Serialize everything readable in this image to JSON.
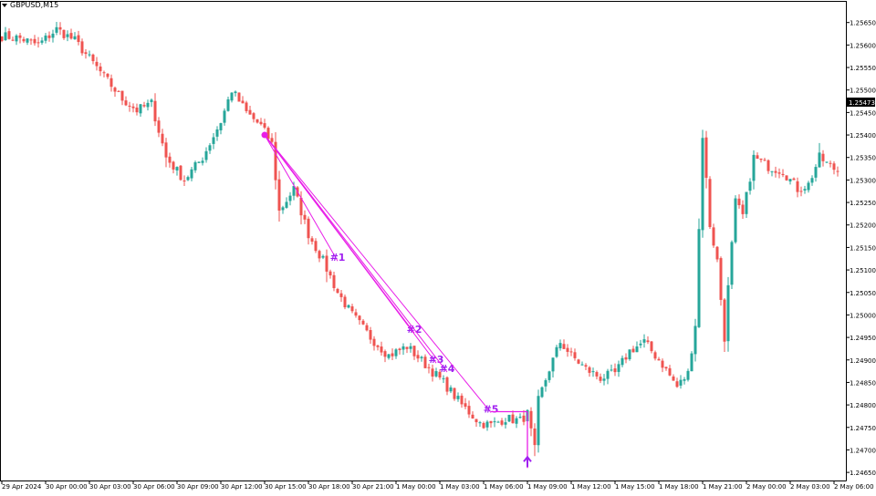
{
  "header": {
    "symbol": "GBPUSD,M15"
  },
  "colors": {
    "bull": "#26a69a",
    "bear": "#ef5350",
    "markup": "#e81ee8",
    "label": "#a020f0",
    "background": "#ffffff",
    "axis": "#000000",
    "price_tag_bg": "#000000",
    "price_tag_fg": "#ffffff"
  },
  "chart_data": {
    "type": "candlestick",
    "title": "",
    "xlabel": "",
    "ylabel": "",
    "ylim": [
      1.24632,
      1.25696
    ],
    "grid": false,
    "y_ticks": [
      "1.25650",
      "1.25600",
      "1.25550",
      "1.25500",
      "1.25450",
      "1.25400",
      "1.25350",
      "1.25300",
      "1.25250",
      "1.25200",
      "1.25150",
      "1.25100",
      "1.25050",
      "1.25000",
      "1.24950",
      "1.24900",
      "1.24850",
      "1.24800",
      "1.24750",
      "1.24700",
      "1.24650"
    ],
    "x_ticks": [
      "29 Apr 2024",
      "30 Apr 00:00",
      "30 Apr 03:00",
      "30 Apr 06:00",
      "30 Apr 09:00",
      "30 Apr 12:00",
      "30 Apr 15:00",
      "30 Apr 18:00",
      "30 Apr 21:00",
      "1 May 00:00",
      "1 May 03:00",
      "1 May 06:00",
      "1 May 09:00",
      "1 May 12:00",
      "1 May 15:00",
      "1 May 18:00",
      "1 May 21:00",
      "2 May 00:00",
      "2 May 03:00",
      "2 May 06:00"
    ],
    "current_price": "1.25473",
    "pivot": {
      "time": "30 Apr 15:00",
      "price": 1.254
    },
    "projections": [
      {
        "label": "#1",
        "time": "30 Apr 20:00",
        "price": 1.2512
      },
      {
        "label": "#2",
        "time": "1 May 01:15",
        "price": 1.2496
      },
      {
        "label": "#3",
        "time": "1 May 02:45",
        "price": 1.24893
      },
      {
        "label": "#4",
        "time": "1 May 03:30",
        "price": 1.24873
      },
      {
        "label": "#5",
        "time": "1 May 06:30",
        "price": 1.24783
      }
    ],
    "level_line_price": 1.24785,
    "arrow": {
      "time": "1 May 09:00",
      "price": 1.24672
    },
    "anchor_points": [
      [
        0,
        1.2562
      ],
      [
        5,
        1.25615
      ],
      [
        10,
        1.256
      ],
      [
        15,
        1.25635
      ],
      [
        20,
        1.2561
      ],
      [
        25,
        1.2556
      ],
      [
        28,
        1.2553
      ],
      [
        33,
        1.2548
      ],
      [
        37,
        1.25455
      ],
      [
        41,
        1.2547
      ],
      [
        45,
        1.2535
      ],
      [
        50,
        1.253
      ],
      [
        55,
        1.2535
      ],
      [
        60,
        1.2543
      ],
      [
        63,
        1.255
      ],
      [
        67,
        1.2545
      ],
      [
        71,
        1.2542
      ],
      [
        74,
        1.2538
      ],
      [
        76,
        1.2523
      ],
      [
        80,
        1.2528
      ],
      [
        84,
        1.2518
      ],
      [
        88,
        1.2512
      ],
      [
        92,
        1.2505
      ],
      [
        96,
        1.25
      ],
      [
        101,
        1.2495
      ],
      [
        106,
        1.2491
      ],
      [
        111,
        1.2493
      ],
      [
        116,
        1.2489
      ],
      [
        121,
        1.2485
      ],
      [
        126,
        1.248
      ],
      [
        131,
        1.2476
      ],
      [
        134,
        1.24755
      ],
      [
        138,
        1.2477
      ],
      [
        142,
        1.24765
      ],
      [
        144,
        1.2478
      ],
      [
        146,
        1.247
      ],
      [
        147,
        1.2481
      ],
      [
        150,
        1.2488
      ],
      [
        153,
        1.2494
      ],
      [
        156,
        1.2491
      ],
      [
        160,
        1.2488
      ],
      [
        164,
        1.2486
      ],
      [
        168,
        1.2487
      ],
      [
        172,
        1.2492
      ],
      [
        176,
        1.2494
      ],
      [
        181,
        1.2489
      ],
      [
        185,
        1.2484
      ],
      [
        188,
        1.2487
      ],
      [
        190,
        1.2498
      ],
      [
        192,
        1.254
      ],
      [
        194,
        1.252
      ],
      [
        196,
        1.2512
      ],
      [
        198,
        1.2495
      ],
      [
        199,
        1.2506
      ],
      [
        201,
        1.2525
      ],
      [
        203,
        1.2522
      ],
      [
        206,
        1.2535
      ],
      [
        210,
        1.2533
      ],
      [
        214,
        1.2532
      ],
      [
        218,
        1.2528
      ],
      [
        221,
        1.2529
      ],
      [
        224,
        1.2535
      ],
      [
        227,
        1.2533
      ],
      [
        229,
        1.2532
      ]
    ]
  }
}
